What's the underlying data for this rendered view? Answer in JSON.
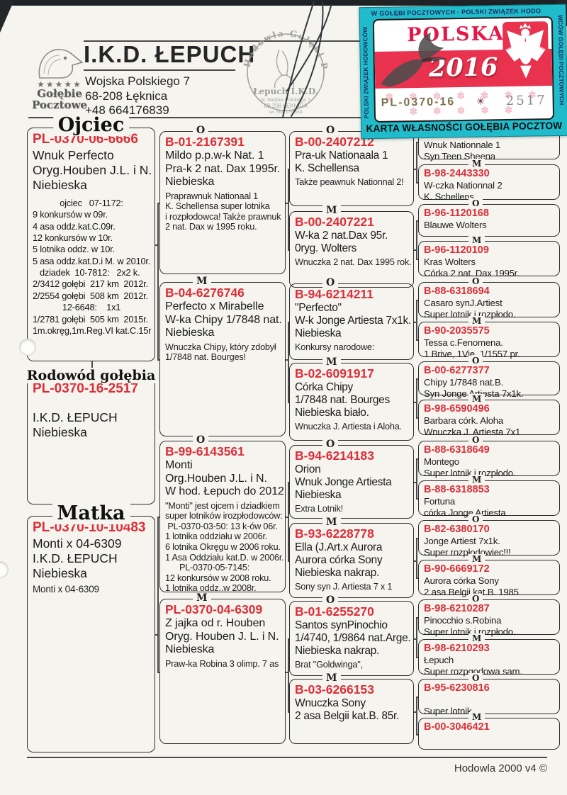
{
  "header": {
    "title": "I.K.D. ŁEPUCH",
    "address_line1": "Wojska Polskiego 7",
    "address_line2": "68-208 Łęknica",
    "phone": "+48  664176839",
    "logo": {
      "stars": "★★★★★",
      "line1": "Gołębie",
      "line2": "Pocztowe"
    }
  },
  "stamp": {
    "arc_text": "Hodowla Gołębi Pocztowych",
    "name": "Łepuch I.K.D.",
    "addr1": "ul. Wojska Polskiego 7",
    "addr2": "68-208 ŁĘKNICA",
    "tel": "tel. 664 176 839"
  },
  "sticker": {
    "top_text": "W GOŁĘBI POCZTOWYCH  ·  POLSKI ZWIĄZEK HODO",
    "left_text": "POLSKI  ZWIĄZEK  HODOWCÓW",
    "right_text": "WCÓW  GOŁĘBI  POCZTOWYCH",
    "country": "POLSKA",
    "year": "2016",
    "ring": "PL-0370-16",
    "star": "✳",
    "serial": "2517",
    "dove_pattern": "✽ ✽ ✽ ✽ ✽ ✽ ✽ ✽ ✽ ✽ ✽ ✽",
    "bottom_text": "KARTA WŁASNOŚCI GOŁĘBIA POCZTOWEGO"
  },
  "pedigree": {
    "subject": {
      "title": "Rodowód gołębia",
      "ring": "PL-0370-16-2517",
      "lines": [
        "I.K.D. ŁEPUCH",
        "Niebieska"
      ]
    },
    "father": {
      "title": "Ojciec",
      "ring": "PL-0370-06-6666",
      "lines": [
        "Wnuk Perfecto",
        "Oryg.Houben J.L. i N.",
        "Niebieska"
      ],
      "details": [
        "ojciec   07-1172:",
        "9 konkursów w 09r.",
        "4 asa oddz.kat.C.09r.",
        "12 konkursów w 10r.",
        "5 lotnika oddz. w 10r.",
        "5 asa oddz.kat.D.i M. w 2010r.",
        "dziadek  10-7812:   2x2 k.",
        "2/3412 gołębi  217 km  2012r.",
        "2/2554 gołębi  508 km  2012r.",
        "12-6648:    1x1",
        "1/2781 gołębi  505 km  2015r.",
        "1m.okręg,1m.Reg.VI kat.C.15r"
      ]
    },
    "mother": {
      "title": "Matka",
      "ring": "PL-0370-10-10483",
      "lines": [
        "Monti x 04-6309",
        "I.K.D. ŁEPUCH",
        "Niebieska"
      ],
      "note": "Monti x 04-6309"
    },
    "gen2": [
      {
        "sex": "O",
        "ring": "B-01-2167391",
        "lines": [
          "Mildo p.p.w-k Nat. 1",
          "Pra-k 2 nat. Dax 1995r.",
          "Niebieska"
        ],
        "notes": [
          "Praprawnuk Nationaal 1",
          "K. Schellensa super lotnika",
          "i rozpłodowca! Także prawnuk",
          "2 nat. Dax w 1995 roku."
        ]
      },
      {
        "sex": "M",
        "ring": "B-04-6276746",
        "lines": [
          "Perfecto x Mirabelle",
          "W-ka Chipy 1/7848 nat.",
          "Niebieska"
        ],
        "notes": [
          "Wnuczka Chipy, który zdobył",
          "1/7848 nat. Bourges!"
        ]
      },
      {
        "sex": "O",
        "ring": "B-99-6143561",
        "lines": [
          "Monti",
          "Org.Houben J.L. i N.",
          "W hod. Łepuch do 2012"
        ],
        "notes": [
          "\"Monti\" jest ojcem i dziadkiem",
          "super lotników irozpłodowców:",
          " PL-0370-03-50: 13 k-ów 06r.",
          "1 lotnika oddziału w 2006r.",
          "6 lotnika Okręgu w 2006 roku.",
          "1 Asa Oddziału kat.D. w 2006r.",
          "      PL-0370-05-7145:",
          "12 konkursów w 2008 roku.",
          "1 lotnika oddz..w 2008r."
        ]
      },
      {
        "sex": "M",
        "ring": "PL-0370-04-6309",
        "lines": [
          "Z jajka od r. Houben",
          "Oryg. Houben J. L. i N.",
          "Niebieska"
        ],
        "notes": [
          "Praw-ka Robina 3 olimp. 7 as"
        ]
      }
    ],
    "gen3": [
      {
        "sex": "O",
        "ring": "B-00-2407212",
        "lines": [
          "Pra-uk Nationaala 1",
          "K. Schellensa"
        ],
        "note": "Także peawnuk Nationnal 2!"
      },
      {
        "sex": "M",
        "ring": "B-00-2407221",
        "lines": [
          "W-ka 2 nat.Dax 95r.",
          "0ryg. Wolters"
        ],
        "note": "Wnuczka 2 nat. Dax 1995 rok."
      },
      {
        "sex": "O",
        "ring": "B-94-6214211",
        "lines": [
          "\"Perfecto\"",
          "W-k Jonge Artiesta 7x1k.",
          "Niebieska"
        ],
        "note": "Konkursy narodowe:"
      },
      {
        "sex": "M",
        "ring": "B-02-6091917",
        "lines": [
          "Córka Chipy",
          "1/7848 nat. Bourges",
          "Niebieska biało."
        ],
        "note": "Wnuczka J. Artiesta i Aloha."
      },
      {
        "sex": "O",
        "ring": "B-94-6214183",
        "lines": [
          "Orion",
          "Wnuk Jonge Artiesta",
          "Niebieska"
        ],
        "note": "Extra Lotnik!"
      },
      {
        "sex": "M",
        "ring": "B-93-6228778",
        "lines": [
          "Ella (J.Art.x Aurora",
          "Aurora córka Sony",
          "Niebieska nakrap."
        ],
        "note": "Sony syn J. Artiesta 7 x 1"
      },
      {
        "sex": "O",
        "ring": "B-01-6255270",
        "lines": [
          "Santos synPinochio",
          "1/4740, 1/9864 nat.Arge.",
          "Niebieska nakrap."
        ],
        "note": "Brat \"Goldwinga\","
      },
      {
        "sex": "M",
        "ring": "B-03-6266153",
        "lines": [
          "Wnuczka Sony",
          "2 asa Belgii kat.B. 85r."
        ],
        "note": ""
      }
    ],
    "gen4": [
      {
        "sex": "O",
        "ring": "",
        "lines": [
          "Wnuk Nationnale 1",
          "Syn Teen Sheena"
        ]
      },
      {
        "sex": "M",
        "ring": "B-98-2443330",
        "lines": [
          "W-czka Nationnal 2",
          "K. Schellens"
        ]
      },
      {
        "sex": "O",
        "ring": "B-96-1120168",
        "lines": [
          "Blauwe Wolters"
        ]
      },
      {
        "sex": "M",
        "ring": "B-96-1120109",
        "lines": [
          "Kras Wolters",
          "Córka 2 nat. Dax 1995r."
        ]
      },
      {
        "sex": "O",
        "ring": "B-88-6318694",
        "lines": [
          "Casaro synJ.Artiest",
          "Super lotnik i rozpłodo."
        ]
      },
      {
        "sex": "M",
        "ring": "B-90-2035575",
        "lines": [
          "Tessa c.Fenomena.",
          "1 Brive, 1Vie. 1/1557 pr."
        ]
      },
      {
        "sex": "O",
        "ring": "B-00-6277377",
        "lines": [
          "Chipy 1/7848 nat.B.",
          "Syn Jonge Artiesta 7x1k."
        ]
      },
      {
        "sex": "M",
        "ring": "B-98-6590496",
        "lines": [
          "Barbara córk. Aloha",
          "Wnuczka J. Artiesta 7x1"
        ]
      },
      {
        "sex": "O",
        "ring": "B-88-6318649",
        "lines": [
          "Montego",
          "Super lotnik i rozpłodo."
        ]
      },
      {
        "sex": "M",
        "ring": "B-88-6318853",
        "lines": [
          "Fortuna",
          "córka Jonge Artiesta"
        ]
      },
      {
        "sex": "O",
        "ring": "B-82-6380170",
        "lines": [
          "Jonge Artiest 7x1k.",
          "Super rozpłodowiec!!!"
        ]
      },
      {
        "sex": "M",
        "ring": "B-90-6669172",
        "lines": [
          "Aurora córka Sony",
          "2 asa Belgii kat.B. 1985"
        ]
      },
      {
        "sex": "O",
        "ring": "B-98-6210287",
        "lines": [
          "Pinocchio s.Robina",
          "Super lotnik i rozpłodo."
        ]
      },
      {
        "sex": "M",
        "ring": "B-98-6210293",
        "lines": [
          "Łepuch",
          "Super rozpqodowa sam."
        ]
      },
      {
        "sex": "O",
        "ring": "B-95-6230816",
        "lines": [
          "",
          "Super lotnik"
        ]
      },
      {
        "sex": "M",
        "ring": "B-00-3046421",
        "lines": []
      }
    ]
  },
  "footer": {
    "credit": "Hodowla 2000 v4 ©"
  },
  "colors": {
    "ring_red": "#dd2e38",
    "sticker_cyan": "#21bccb",
    "sticker_red": "#e8324e"
  }
}
